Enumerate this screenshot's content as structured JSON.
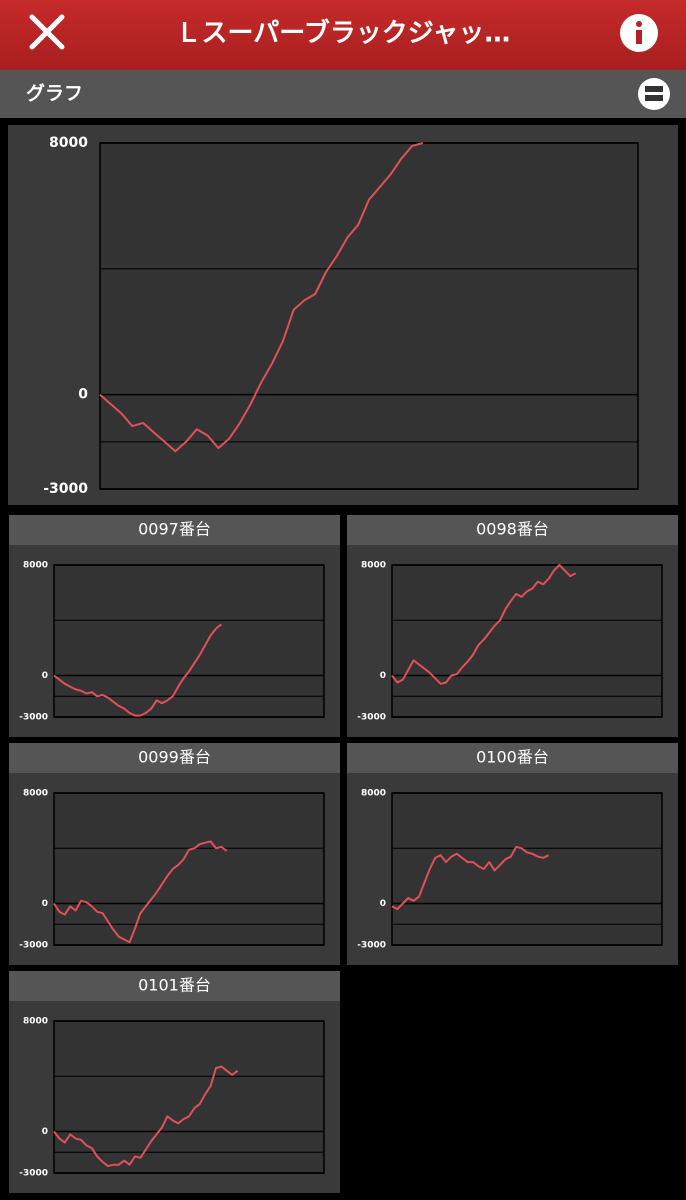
{
  "header": {
    "title": "Ｌスーパーブラックジャッ…"
  },
  "section": {
    "title": "グラフ"
  },
  "chart_data": [
    {
      "type": "line",
      "ylim": [
        -3000,
        8000
      ],
      "yticks": [
        -3000,
        0,
        8000
      ],
      "grid_lines": [
        -1500,
        4000
      ],
      "xlim": [
        0,
        50
      ],
      "color": "#e0505a",
      "values": [
        0,
        -300,
        -600,
        -1000,
        -900,
        -1200,
        -1500,
        -1800,
        -1500,
        -1100,
        -1300,
        -1700,
        -1400,
        -900,
        -300,
        400,
        1000,
        1700,
        2700,
        3000,
        3200,
        3900,
        4400,
        5000,
        5400,
        6200,
        6600,
        7000,
        7500,
        7900,
        8000
      ]
    },
    {
      "type": "line",
      "title": "0097番台",
      "ylim": [
        -3000,
        8000
      ],
      "yticks": [
        -3000,
        0,
        8000
      ],
      "grid_lines": [
        -1500,
        4000
      ],
      "xlim": [
        0,
        50
      ],
      "color": "#e0505a",
      "values": [
        0,
        -300,
        -600,
        -800,
        -1000,
        -1100,
        -1300,
        -1200,
        -1500,
        -1400,
        -1600,
        -1900,
        -2200,
        -2400,
        -2700,
        -2900,
        -2900,
        -2700,
        -2400,
        -1800,
        -2000,
        -1800,
        -1500,
        -800,
        -200,
        300,
        900,
        1500,
        2200,
        2900,
        3400,
        3700
      ]
    },
    {
      "type": "line",
      "title": "0098番台",
      "ylim": [
        -3000,
        8000
      ],
      "yticks": [
        -3000,
        0,
        8000
      ],
      "grid_lines": [
        -1500,
        4000
      ],
      "xlim": [
        0,
        50
      ],
      "color": "#e0505a",
      "values": [
        0,
        -500,
        -300,
        400,
        1100,
        800,
        500,
        200,
        -200,
        -600,
        -500,
        0,
        100,
        600,
        1000,
        1500,
        2200,
        2600,
        3100,
        3600,
        4000,
        4800,
        5400,
        5900,
        5700,
        6100,
        6300,
        6800,
        6600,
        7000,
        7600,
        8000,
        7600,
        7200,
        7400
      ]
    },
    {
      "type": "line",
      "title": "0099番台",
      "ylim": [
        -3000,
        8000
      ],
      "yticks": [
        -3000,
        0,
        8000
      ],
      "grid_lines": [
        -1500,
        4000
      ],
      "xlim": [
        0,
        50
      ],
      "color": "#e0505a",
      "values": [
        0,
        -600,
        -800,
        -200,
        -500,
        200,
        100,
        -200,
        -600,
        -700,
        -1300,
        -1900,
        -2400,
        -2600,
        -2800,
        -1800,
        -700,
        -200,
        300,
        800,
        1400,
        2000,
        2500,
        2800,
        3200,
        3900,
        4000,
        4300,
        4400,
        4500,
        4000,
        4100,
        3800
      ]
    },
    {
      "type": "line",
      "title": "0100番台",
      "ylim": [
        -3000,
        8000
      ],
      "yticks": [
        -3000,
        0,
        8000
      ],
      "grid_lines": [
        -1500,
        4000
      ],
      "xlim": [
        0,
        50
      ],
      "color": "#e0505a",
      "values": [
        -200,
        -400,
        0,
        400,
        200,
        500,
        1500,
        2500,
        3300,
        3500,
        3000,
        3400,
        3600,
        3300,
        3000,
        3000,
        2700,
        2500,
        3000,
        2400,
        2800,
        3200,
        3400,
        4100,
        4000,
        3700,
        3600,
        3400,
        3300,
        3500
      ]
    },
    {
      "type": "line",
      "title": "0101番台",
      "ylim": [
        -3000,
        8000
      ],
      "yticks": [
        -3000,
        0,
        8000
      ],
      "grid_lines": [
        -1500,
        4000
      ],
      "xlim": [
        0,
        50
      ],
      "color": "#e0505a",
      "values": [
        0,
        -500,
        -800,
        -200,
        -500,
        -600,
        -1000,
        -1200,
        -1800,
        -2200,
        -2500,
        -2400,
        -2400,
        -2100,
        -2400,
        -1800,
        -1900,
        -1300,
        -700,
        -200,
        300,
        1100,
        800,
        600,
        900,
        1100,
        1700,
        2000,
        2700,
        3300,
        4600,
        4700,
        4400,
        4100,
        4400
      ]
    }
  ]
}
